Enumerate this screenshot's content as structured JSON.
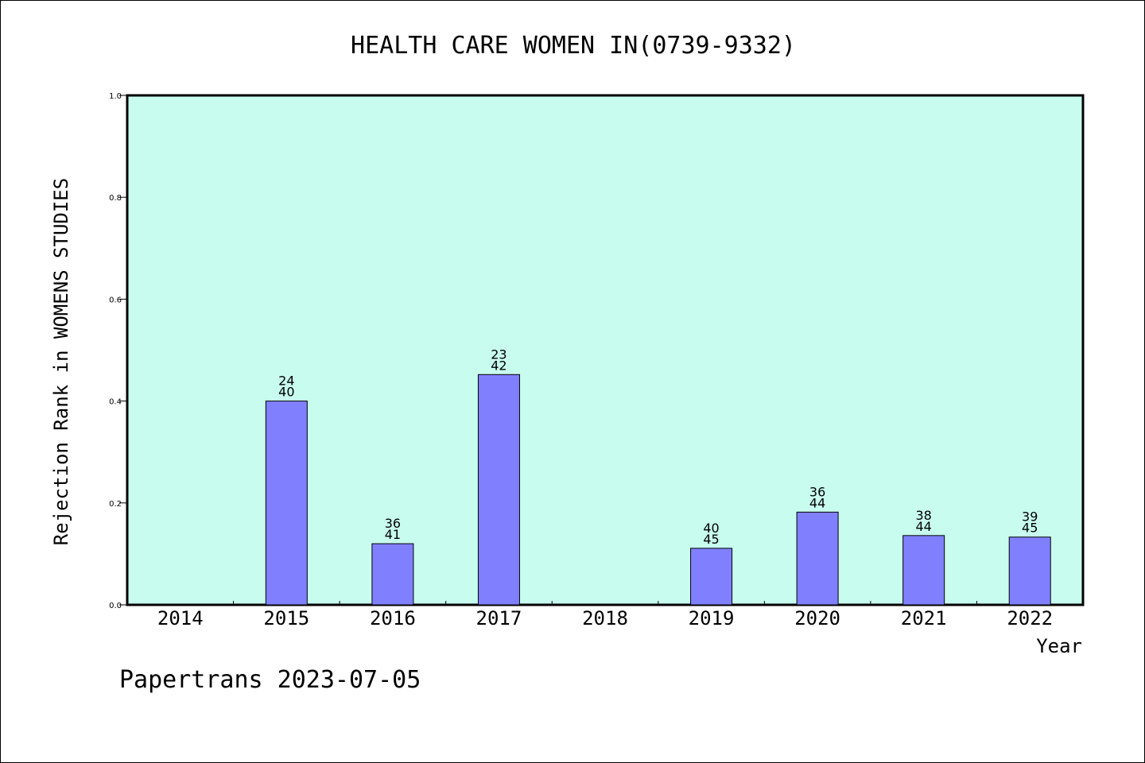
{
  "footer_text": "Papertrans 2023-07-05",
  "colors": {
    "plot_background": "#c8fcee",
    "bar_fill": "#8080ff",
    "axis": "#000000"
  },
  "chart_data": {
    "type": "bar",
    "title": "HEALTH CARE WOMEN IN(0739-9332)",
    "xlabel": "Year",
    "ylabel": "Rejection Rank in WOMENS STUDIES",
    "categories": [
      "2014",
      "2015",
      "2016",
      "2017",
      "2018",
      "2019",
      "2020",
      "2021",
      "2022"
    ],
    "values": [
      null,
      0.4,
      0.12,
      0.452,
      null,
      0.111,
      0.182,
      0.136,
      0.133
    ],
    "bar_labels": [
      null,
      [
        "24",
        "40"
      ],
      [
        "36",
        "41"
      ],
      [
        "23",
        "42"
      ],
      null,
      [
        "40",
        "45"
      ],
      [
        "36",
        "44"
      ],
      [
        "38",
        "44"
      ],
      [
        "39",
        "45"
      ]
    ],
    "ylim": [
      0,
      1.0
    ],
    "yticks": [
      "0.0",
      "0.2",
      "0.4",
      "0.6",
      "0.8",
      "1.0"
    ],
    "grid": false,
    "legend": "none"
  }
}
